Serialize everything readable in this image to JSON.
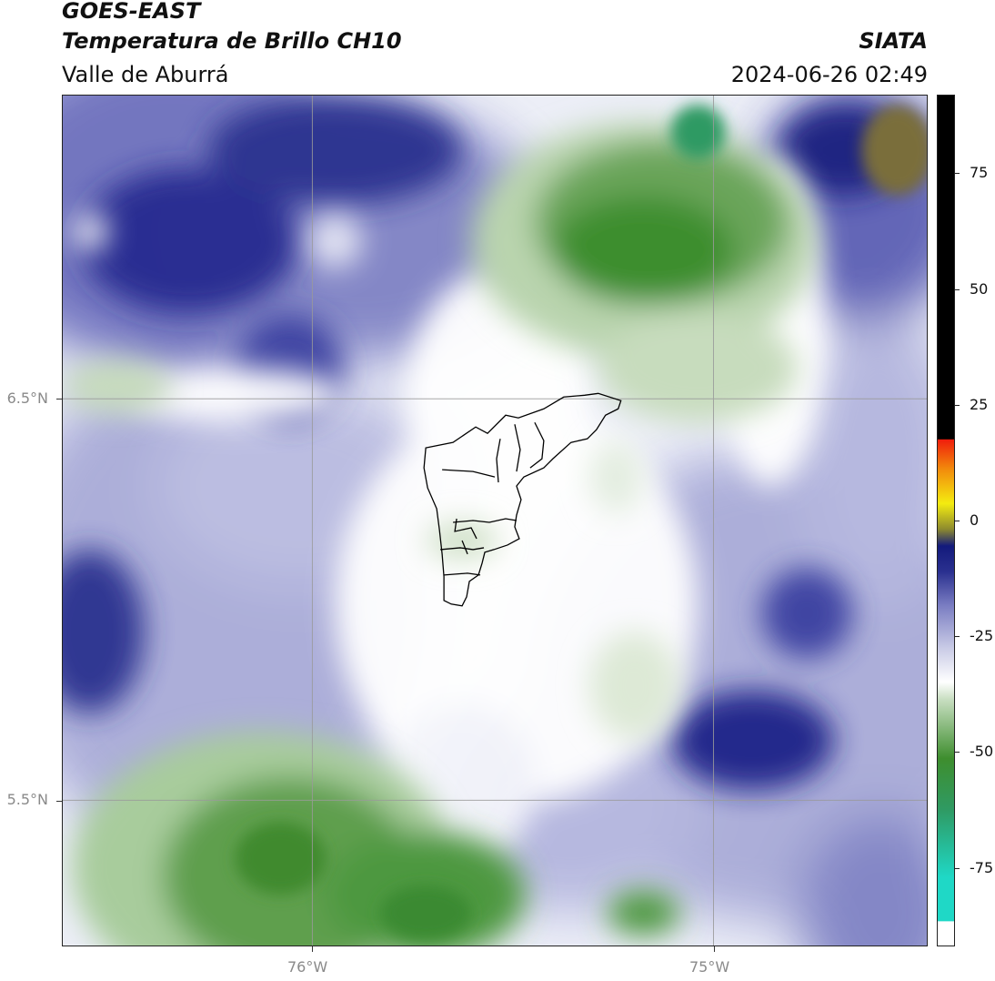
{
  "header": {
    "title_line1": "GOES-EAST",
    "title_line2": "Temperatura de Brillo CH10",
    "subtitle": "Valle de Aburrá",
    "org": "SIATA",
    "timestamp": "2024-06-26 02:49"
  },
  "map": {
    "lat_labels": [
      "6.5°N",
      "5.5°N"
    ],
    "lon_labels": [
      "76°W",
      "75°W"
    ],
    "grid_color": "#9a9a9a",
    "boundary_color": "#000000"
  },
  "colorbar": {
    "tick_labels": [
      "75",
      "50",
      "25",
      "0",
      "-25",
      "-50",
      "-75"
    ],
    "tick_values": [
      75,
      50,
      25,
      0,
      -25,
      -50,
      -75
    ],
    "range": [
      -92,
      92
    ],
    "colors": {
      "teal": "#1fd8c6",
      "green_dark": "#3e8e2e",
      "green_light": "#c9dfc2",
      "white": "#ffffff",
      "lavender": "#a7a9d6",
      "navy": "#131a7c",
      "olive": "#8e8b2e",
      "yellow": "#f4ec10",
      "orange": "#f28c0c",
      "red": "#f01e0c",
      "black": "#000000"
    }
  }
}
